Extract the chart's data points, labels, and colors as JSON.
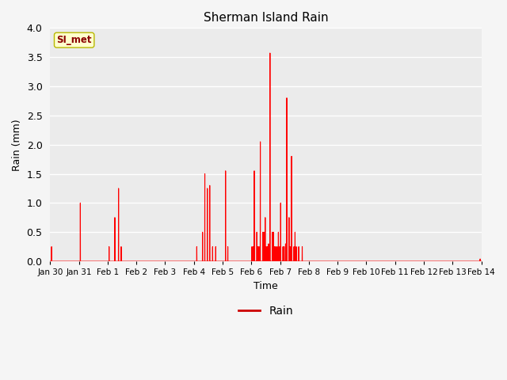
{
  "title": "Sherman Island Rain",
  "xlabel": "Time",
  "ylabel": "Rain (mm)",
  "ylim": [
    0.0,
    4.0
  ],
  "line_color": "#ff0000",
  "line_width": 0.8,
  "fig_bg_color": "#f5f5f5",
  "plot_bg_color": "#ebebeb",
  "legend_label": "Rain",
  "legend_line_color": "#cc0000",
  "annotation_text": "SI_met",
  "annotation_color": "#8b0000",
  "annotation_bg": "#ffffcc",
  "annotation_border": "#b8b800",
  "x_tick_labels": [
    "Jan 30",
    "Jan 31",
    "Feb 1",
    "Feb 2",
    "Feb 3",
    "Feb 4",
    "Feb 5",
    "Feb 6",
    "Feb 7",
    "Feb 8",
    "Feb 9",
    "Feb 10",
    "Feb 11",
    "Feb 12",
    "Feb 13",
    "Feb 14"
  ],
  "x_tick_positions": [
    0,
    1,
    2,
    3,
    4,
    5,
    6,
    7,
    8,
    9,
    10,
    11,
    12,
    13,
    14,
    15
  ],
  "yticks": [
    0.0,
    0.5,
    1.0,
    1.5,
    2.0,
    2.5,
    3.0,
    3.5,
    4.0
  ],
  "rain_spikes": [
    [
      0.05,
      0.25
    ],
    [
      0.1,
      0.0
    ],
    [
      1.05,
      1.0
    ],
    [
      1.1,
      0.0
    ],
    [
      2.05,
      0.25
    ],
    [
      2.1,
      0.0
    ],
    [
      2.25,
      0.75
    ],
    [
      2.3,
      0.0
    ],
    [
      2.38,
      1.25
    ],
    [
      2.43,
      0.0
    ],
    [
      2.47,
      0.25
    ],
    [
      2.52,
      0.0
    ],
    [
      5.1,
      0.25
    ],
    [
      5.15,
      0.0
    ],
    [
      5.3,
      0.5
    ],
    [
      5.35,
      0.0
    ],
    [
      5.38,
      1.5
    ],
    [
      5.43,
      0.0
    ],
    [
      5.47,
      1.25
    ],
    [
      5.52,
      0.0
    ],
    [
      5.55,
      1.3
    ],
    [
      5.6,
      0.0
    ],
    [
      5.65,
      0.25
    ],
    [
      5.7,
      0.0
    ],
    [
      5.76,
      0.25
    ],
    [
      5.81,
      0.0
    ],
    [
      6.1,
      1.55
    ],
    [
      6.15,
      0.0
    ],
    [
      6.18,
      0.25
    ],
    [
      6.23,
      0.0
    ],
    [
      7.02,
      0.25
    ],
    [
      7.06,
      0.25
    ],
    [
      7.1,
      1.55
    ],
    [
      7.15,
      0.0
    ],
    [
      7.19,
      0.5
    ],
    [
      7.23,
      0.25
    ],
    [
      7.27,
      0.25
    ],
    [
      7.31,
      2.05
    ],
    [
      7.36,
      0.0
    ],
    [
      7.4,
      0.5
    ],
    [
      7.44,
      0.5
    ],
    [
      7.48,
      0.75
    ],
    [
      7.52,
      0.25
    ],
    [
      7.56,
      0.25
    ],
    [
      7.6,
      0.3
    ],
    [
      7.65,
      3.57
    ],
    [
      7.7,
      0.0
    ],
    [
      7.73,
      0.5
    ],
    [
      7.77,
      0.5
    ],
    [
      7.81,
      0.25
    ],
    [
      7.85,
      0.25
    ],
    [
      7.9,
      0.25
    ],
    [
      7.94,
      0.5
    ],
    [
      7.98,
      0.25
    ],
    [
      8.02,
      1.0
    ],
    [
      8.07,
      0.0
    ],
    [
      8.1,
      0.25
    ],
    [
      8.14,
      0.25
    ],
    [
      8.19,
      0.3
    ],
    [
      8.23,
      2.8
    ],
    [
      8.28,
      0.0
    ],
    [
      8.31,
      0.75
    ],
    [
      8.35,
      0.25
    ],
    [
      8.4,
      1.8
    ],
    [
      8.44,
      0.0
    ],
    [
      8.48,
      0.25
    ],
    [
      8.52,
      0.5
    ],
    [
      8.56,
      0.25
    ],
    [
      8.6,
      0.0
    ],
    [
      8.65,
      0.25
    ],
    [
      8.69,
      0.0
    ],
    [
      8.77,
      0.25
    ],
    [
      8.81,
      0.0
    ],
    [
      14.96,
      0.04
    ],
    [
      15.0,
      0.0
    ]
  ]
}
